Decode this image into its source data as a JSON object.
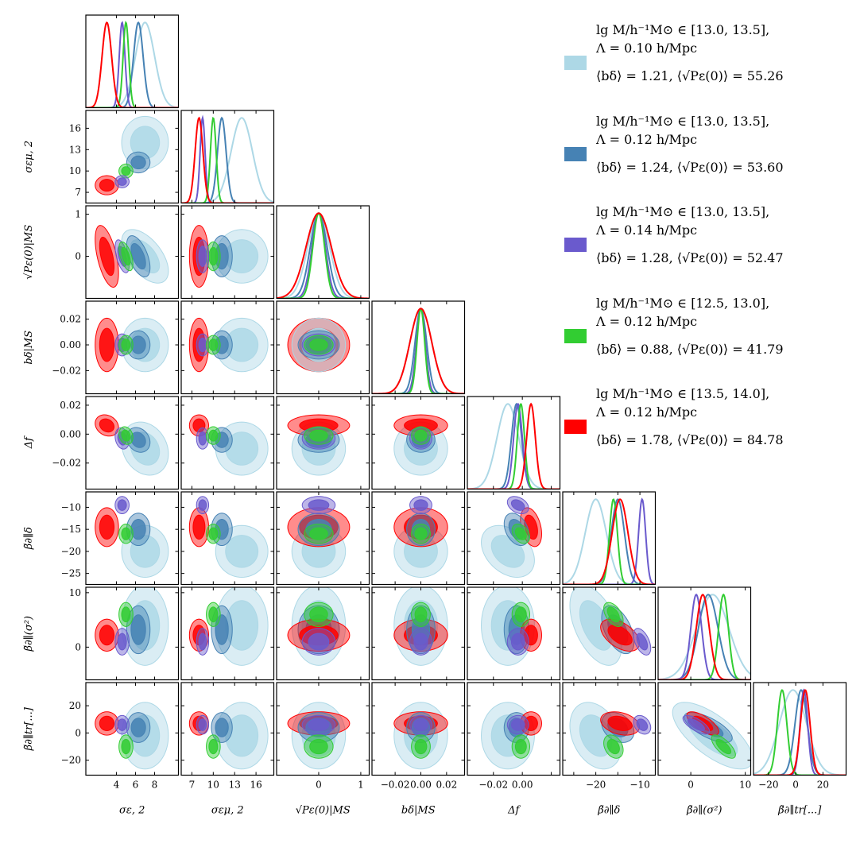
{
  "chart_data": {
    "type": "corner-triangle",
    "parameters": [
      {
        "key": "s_eps",
        "label": "σε, 2",
        "range": [
          0.8,
          10.5
        ],
        "ticks": [
          4,
          6,
          8
        ]
      },
      {
        "key": "s_emu",
        "label": "σεμ, 2",
        "range": [
          5.5,
          18.5
        ],
        "ticks": [
          7,
          10,
          13,
          16
        ]
      },
      {
        "key": "p_eps",
        "label": "√Pε(0)|MS",
        "range": [
          -1.0,
          1.2
        ],
        "ticks": [
          0,
          1
        ]
      },
      {
        "key": "b_delta",
        "label": "bδ|MS",
        "range": [
          -0.038,
          0.034
        ],
        "ticks": [
          -0.02,
          0.0,
          0.02
        ]
      },
      {
        "key": "delta_f",
        "label": "Δf",
        "range": [
          -0.038,
          0.026
        ],
        "ticks": [
          -0.02,
          0.0,
          0.02
        ]
      },
      {
        "key": "beta_d",
        "label": "β̃∂∥δ",
        "range": [
          -27.5,
          -6.5
        ],
        "ticks": [
          -25,
          -20,
          -15,
          -10
        ]
      },
      {
        "key": "beta_s2",
        "label": "β̃∂∥(σ²)",
        "range": [
          -6,
          11
        ],
        "ticks": [
          0,
          10
        ]
      },
      {
        "key": "beta_tr",
        "label": "β̃∂∥tr[...]",
        "range": [
          -31,
          37
        ],
        "ticks": [
          -20,
          0,
          20
        ]
      }
    ],
    "tick_labels": {
      "s_eps": [
        "4",
        "6",
        "8"
      ],
      "s_emu": [
        "7",
        "10",
        "13",
        "16"
      ],
      "p_eps": [
        "0",
        "1"
      ],
      "b_delta": [
        "−0.02",
        "0.00",
        "0.02"
      ],
      "delta_f": [
        "−0.02",
        "0.00",
        "0.02"
      ],
      "beta_d": [
        "−25",
        "−20",
        "−15",
        "−10"
      ],
      "beta_s2": [
        "0",
        "10"
      ],
      "beta_tr": [
        "−20",
        "0",
        "20"
      ],
      "x_p_eps": [
        "0",
        "1"
      ],
      "x_b_delta": [
        "−0.02",
        "0.00",
        "0.02"
      ],
      "x_delta_f": [
        "−0.02",
        "0.00"
      ],
      "x_beta_d": [
        "−20",
        "−10"
      ],
      "x_beta_s2": [
        "0",
        "10"
      ],
      "x_beta_tr": [
        "−20",
        "0",
        "20"
      ]
    },
    "series": [
      {
        "name": "M13.0-13.5, Λ=0.10",
        "color": "#add8e6",
        "means": [
          7.0,
          14.0,
          0.0,
          0.0,
          -0.01,
          -20.0,
          4.0,
          -2.0
        ],
        "sigmas": [
          1.0,
          1.5,
          0.26,
          0.0085,
          0.0075,
          2.4,
          3.0,
          10.0
        ]
      },
      {
        "name": "M13.0-13.5, Λ=0.12",
        "color": "#4682b4",
        "means": [
          6.3,
          11.2,
          0.0,
          0.0,
          -0.004,
          -15.0,
          3.2,
          4.0
        ],
        "sigmas": [
          0.5,
          0.6,
          0.2,
          0.0045,
          0.0035,
          1.5,
          1.8,
          4.5
        ]
      },
      {
        "name": "M13.0-13.5, Λ=0.14",
        "color": "#6a5acd",
        "means": [
          4.6,
          8.5,
          0.0,
          0.0,
          -0.003,
          -9.5,
          1.0,
          6.0
        ],
        "sigmas": [
          0.3,
          0.35,
          0.16,
          0.0035,
          0.003,
          0.8,
          1.0,
          2.8
        ]
      },
      {
        "name": "M12.5-13.0, Λ=0.12",
        "color": "#32cd32",
        "means": [
          5.0,
          10.0,
          0.0,
          0.0,
          -0.001,
          -16.0,
          6.0,
          -10.0
        ],
        "sigmas": [
          0.3,
          0.4,
          0.14,
          0.003,
          0.0025,
          0.9,
          0.9,
          3.5
        ]
      },
      {
        "name": "M13.5-14.0, Λ=0.12",
        "color": "#ff0000",
        "means": [
          3.0,
          8.0,
          0.0,
          0.0,
          0.006,
          -14.5,
          2.2,
          7.0
        ],
        "sigmas": [
          0.5,
          0.55,
          0.3,
          0.0085,
          0.003,
          1.8,
          1.2,
          3.5
        ]
      }
    ]
  },
  "legend": [
    {
      "color": "#add8e6",
      "line1": "lg M/h⁻¹M⊙ ∈ [13.0, 13.5],",
      "line2": "Λ = 0.10 h/Mpc",
      "line3": "⟨bδ⟩ = 1.21, ⟨√Pε(0)⟩ = 55.26"
    },
    {
      "color": "#4682b4",
      "line1": "lg M/h⁻¹M⊙ ∈ [13.0, 13.5],",
      "line2": "Λ = 0.12 h/Mpc",
      "line3": "⟨bδ⟩ = 1.24, ⟨√Pε(0)⟩ = 53.60"
    },
    {
      "color": "#6a5acd",
      "line1": "lg M/h⁻¹M⊙ ∈ [13.0, 13.5],",
      "line2": "Λ = 0.14 h/Mpc",
      "line3": "⟨bδ⟩ = 1.28, ⟨√Pε(0)⟩ = 52.47"
    },
    {
      "color": "#32cd32",
      "line1": "lg M/h⁻¹M⊙ ∈ [12.5, 13.0],",
      "line2": "Λ = 0.12 h/Mpc",
      "line3": "⟨bδ⟩ = 0.88, ⟨√Pε(0)⟩ = 41.79"
    },
    {
      "color": "#ff0000",
      "line1": "lg M/h⁻¹M⊙ ∈ [13.5, 14.0],",
      "line2": "Λ = 0.12 h/Mpc",
      "line3": "⟨bδ⟩ = 1.78, ⟨√Pε(0)⟩ = 84.78"
    }
  ]
}
